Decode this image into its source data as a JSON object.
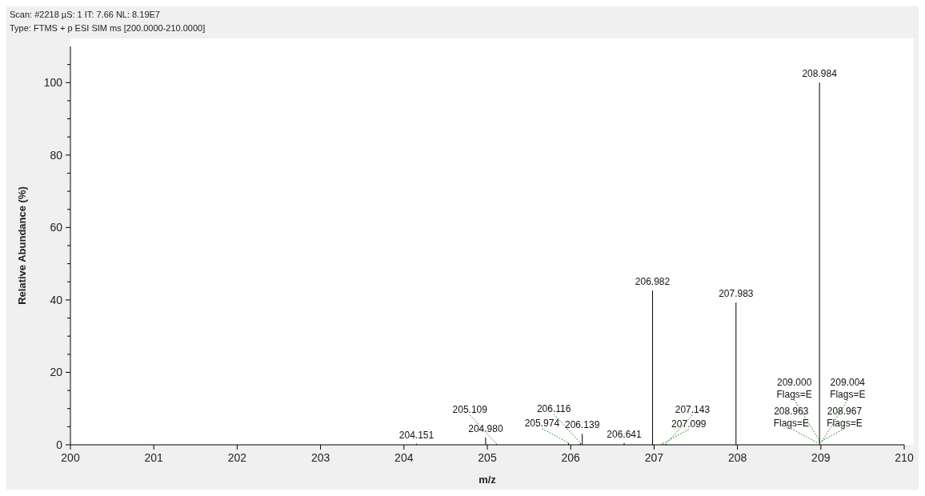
{
  "chart_data": {
    "type": "bar",
    "xlabel": "m/z",
    "ylabel": "Relative Abundance (%)",
    "annotations": [
      "Scan: #2218  µS: 1  IT: 7.66  NL: 8.19E7",
      "Type: FTMS + p ESI SIM ms [200.0000-210.0000]",
      {
        "text": "204.151",
        "x": 204.151,
        "y": 0.3
      },
      {
        "text": "204.980",
        "x": 204.98,
        "y": 2.0
      },
      {
        "text": "205.109",
        "x": 205.109,
        "y": 0.3
      },
      {
        "text": "205.974",
        "x": 205.974,
        "y": 0.5
      },
      {
        "text": "206.116",
        "x": 206.116,
        "y": 0.5
      },
      {
        "text": "206.139",
        "x": 206.139,
        "y": 3.0
      },
      {
        "text": "206.641",
        "x": 206.641,
        "y": 0.5
      },
      {
        "text": "206.982",
        "x": 206.982,
        "y": 42.6
      },
      {
        "text": "207.099",
        "x": 207.099,
        "y": 0.3
      },
      {
        "text": "207.143",
        "x": 207.143,
        "y": 0.3
      },
      {
        "text": "207.983",
        "x": 207.983,
        "y": 39.3
      },
      {
        "text": "208.963\nFlags=E",
        "x": 208.963,
        "y": 0.5
      },
      {
        "text": "208.967\nFlags=E",
        "x": 208.967,
        "y": 0.5
      },
      {
        "text": "208.984",
        "x": 208.984,
        "y": 100
      },
      {
        "text": "209.000\nFlags=E",
        "x": 209.0,
        "y": 0.5
      },
      {
        "text": "209.004\nFlags=E",
        "x": 209.004,
        "y": 0.5
      }
    ],
    "x": [
      204.151,
      204.98,
      205.109,
      205.974,
      206.116,
      206.139,
      206.641,
      206.982,
      207.099,
      207.143,
      207.983,
      208.984
    ],
    "values": [
      0.3,
      2.0,
      0.3,
      0.5,
      0.5,
      3.0,
      0.5,
      42.6,
      0.3,
      0.3,
      39.3,
      100
    ],
    "color": "#000000",
    "xlim": [
      200,
      210
    ],
    "xticks": [
      200,
      201,
      202,
      203,
      204,
      205,
      206,
      207,
      208,
      209,
      210
    ],
    "ylim": [
      0,
      110
    ],
    "yticks": [
      0,
      {
        "value": 5,
        "label": null
      },
      {
        "value": 10,
        "label": null
      },
      {
        "value": 15,
        "label": null
      },
      20,
      {
        "value": 25,
        "label": null
      },
      {
        "value": 30,
        "label": null
      },
      {
        "value": 35,
        "label": null
      },
      40,
      {
        "value": 45,
        "label": null
      },
      {
        "value": 50,
        "label": null
      },
      {
        "value": 55,
        "label": null
      },
      60,
      {
        "value": 65,
        "label": null
      },
      {
        "value": 70,
        "label": null
      },
      {
        "value": 75,
        "label": null
      },
      80,
      {
        "value": 85,
        "label": null
      },
      {
        "value": 90,
        "label": null
      },
      {
        "value": 95,
        "label": null
      },
      100,
      {
        "value": 105,
        "label": null
      }
    ],
    "grid": false
  }
}
